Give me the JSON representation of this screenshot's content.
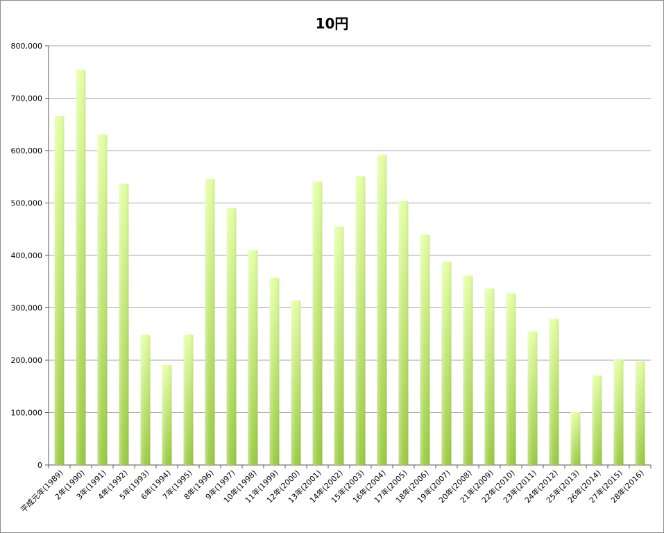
{
  "chart_data": {
    "type": "bar",
    "title": "10円",
    "xlabel": "",
    "ylabel": "",
    "ylim": [
      0,
      800000
    ],
    "yticks": [
      "0",
      "100,000",
      "200,000",
      "300,000",
      "400,000",
      "500,000",
      "600,000",
      "700,000",
      "800,000"
    ],
    "grid": true,
    "legend": "none",
    "bar_color_top": "#e3ffa3",
    "bar_color_bottom": "#9ccc44",
    "categories": [
      "平成元年(1989)",
      "2年(1990)",
      "3年(1991)",
      "4年(1992)",
      "5年(1993)",
      "6年(1994)",
      "7年(1995)",
      "8年(1996)",
      "9年(1997)",
      "10年(1998)",
      "11年(1999)",
      "12年(2000)",
      "13年(2001)",
      "14年(2002)",
      "15年(2003)",
      "16年(2004)",
      "17年(2005)",
      "18年(2006)",
      "19年(2007)",
      "20年(2008)",
      "21年(2009)",
      "22年(2010)",
      "23年(2011)",
      "24年(2012)",
      "25年(2013)",
      "26年(2014)",
      "27年(2015)",
      "28年(2016)"
    ],
    "values": [
      666000,
      754000,
      631000,
      537000,
      249000,
      191000,
      249000,
      546000,
      490000,
      410000,
      358000,
      314000,
      541000,
      455000,
      551000,
      592000,
      504000,
      440000,
      388000,
      362000,
      337000,
      328000,
      255000,
      279000,
      101000,
      171000,
      202000,
      198000
    ]
  }
}
